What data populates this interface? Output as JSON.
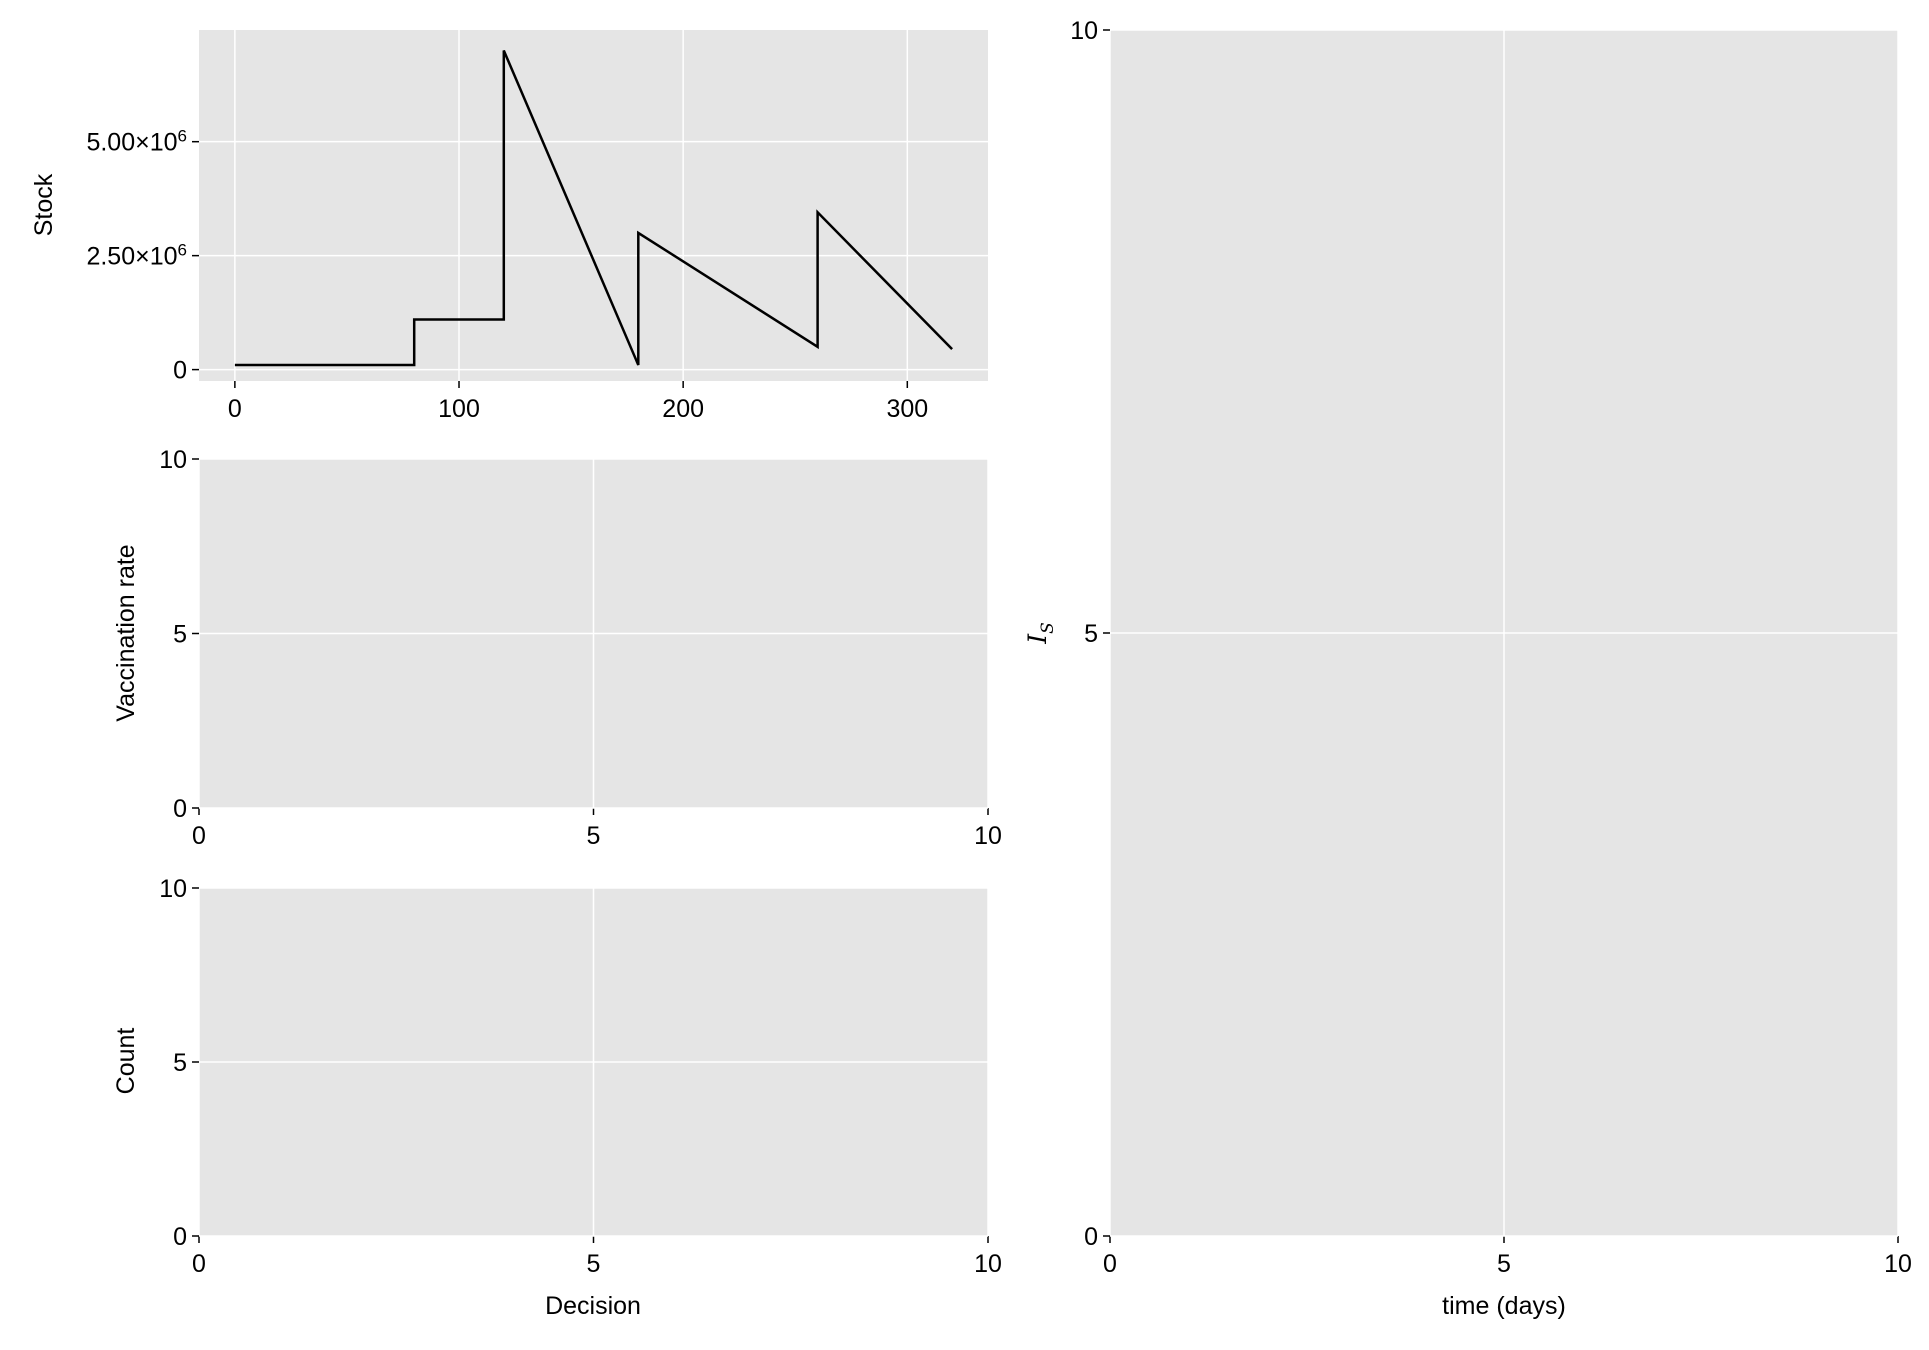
{
  "chart_data": [
    {
      "id": "stock",
      "type": "line",
      "title": "",
      "xlabel": "",
      "ylabel": "Stock",
      "xlim": [
        -16,
        336
      ],
      "ylim": [
        -250000,
        7450000
      ],
      "xticks": [
        0,
        100,
        200,
        300
      ],
      "xtick_labels": [
        "0",
        "100",
        "200",
        "300"
      ],
      "yticks": [
        0,
        2500000,
        5000000
      ],
      "ytick_labels": [
        {
          "mantissa": "0",
          "exponent": ""
        },
        {
          "mantissa": "2.50×10",
          "exponent": "6"
        },
        {
          "mantissa": "5.00×10",
          "exponent": "6"
        }
      ],
      "grid": true,
      "series": [
        {
          "x": [
            0,
            80,
            80,
            120,
            120,
            180,
            180,
            260,
            260,
            320
          ],
          "y": [
            100000,
            100000,
            1100000,
            1100000,
            7000000,
            100000,
            3000000,
            500000,
            3450000,
            450000
          ]
        }
      ]
    },
    {
      "id": "vaccination-rate",
      "type": "line",
      "title": "",
      "xlabel": "",
      "ylabel": "Vaccination rate",
      "xlim": [
        0,
        10
      ],
      "ylim": [
        0,
        10
      ],
      "xticks": [
        0,
        5,
        10
      ],
      "xtick_labels": [
        "0",
        "5",
        "10"
      ],
      "yticks": [
        0,
        5,
        10
      ],
      "ytick_labels": [
        "0",
        "5",
        "10"
      ],
      "grid": true,
      "series": []
    },
    {
      "id": "count",
      "type": "bar",
      "title": "",
      "xlabel": "Decision",
      "ylabel": "Count",
      "xlim": [
        0,
        10
      ],
      "ylim": [
        0,
        10
      ],
      "xticks": [
        0,
        5,
        10
      ],
      "xtick_labels": [
        "0",
        "5",
        "10"
      ],
      "yticks": [
        0,
        5,
        10
      ],
      "ytick_labels": [
        "0",
        "5",
        "10"
      ],
      "grid": true,
      "series": []
    },
    {
      "id": "infected",
      "type": "line",
      "title": "",
      "xlabel": "time (days)",
      "ylabel": "I",
      "ylabel_subscript": "S",
      "xlim": [
        0,
        10
      ],
      "ylim": [
        0,
        10
      ],
      "xticks": [
        0,
        5,
        10
      ],
      "xtick_labels": [
        "0",
        "5",
        "10"
      ],
      "yticks": [
        0,
        5,
        10
      ],
      "ytick_labels": [
        "0",
        "5",
        "10"
      ],
      "grid": true,
      "series": []
    }
  ],
  "colors": {
    "panel_background": "#e5e5e5",
    "grid": "#ffffff",
    "line": "#000000",
    "text": "#000000"
  }
}
